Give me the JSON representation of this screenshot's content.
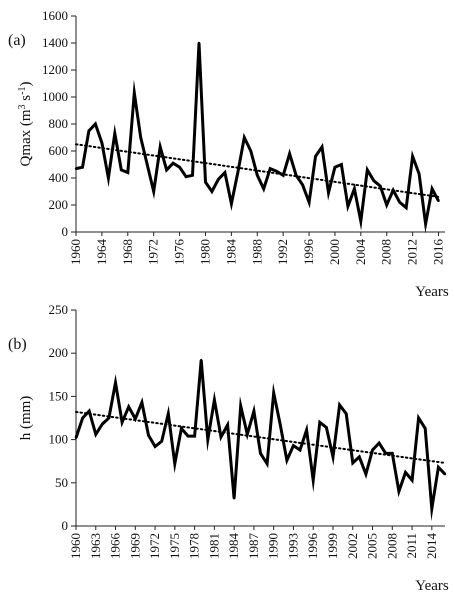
{
  "colors": {
    "series": "#000000",
    "trend": "#000000",
    "axis": "#222222"
  },
  "chart_data": [
    {
      "type": "line",
      "panel_label": "(a)",
      "ylabel_main": "Qmax (m",
      "ylabel_sup1": "3",
      "ylabel_mid": " s",
      "ylabel_sup2": "-1",
      "ylabel_end": ")",
      "xlabel": "Years",
      "ylim": [
        0,
        1600
      ],
      "yticks": [
        0,
        200,
        400,
        600,
        800,
        1000,
        1200,
        1400,
        1600
      ],
      "xlim": [
        1960,
        2017
      ],
      "xticks": [
        1960,
        1964,
        1968,
        1972,
        1976,
        1980,
        1984,
        1988,
        1992,
        1996,
        2000,
        2004,
        2008,
        2012,
        2016
      ],
      "grid": false,
      "x": [
        1960,
        1961,
        1962,
        1963,
        1964,
        1965,
        1966,
        1967,
        1968,
        1969,
        1970,
        1971,
        1972,
        1973,
        1974,
        1975,
        1976,
        1977,
        1978,
        1979,
        1980,
        1981,
        1982,
        1983,
        1984,
        1985,
        1986,
        1987,
        1988,
        1989,
        1990,
        1991,
        1992,
        1993,
        1994,
        1995,
        1996,
        1997,
        1998,
        1999,
        2000,
        2001,
        2002,
        2003,
        2004,
        2005,
        2006,
        2007,
        2008,
        2009,
        2010,
        2011,
        2012,
        2013,
        2014,
        2015,
        2016
      ],
      "values": [
        470,
        480,
        750,
        800,
        660,
        400,
        730,
        460,
        440,
        1030,
        700,
        500,
        300,
        630,
        460,
        510,
        480,
        410,
        420,
        1400,
        370,
        300,
        390,
        440,
        210,
        440,
        700,
        600,
        420,
        320,
        470,
        450,
        420,
        580,
        420,
        350,
        220,
        560,
        630,
        290,
        480,
        500,
        190,
        320,
        80,
        460,
        380,
        340,
        200,
        310,
        220,
        180,
        560,
        430,
        60,
        320,
        230
      ],
      "trend": {
        "start": [
          1960,
          650
        ],
        "end": [
          2016,
          260
        ]
      }
    },
    {
      "type": "line",
      "panel_label": "(b)",
      "ylabel": "h (mm)",
      "xlabel": "Years",
      "ylim": [
        0,
        250
      ],
      "yticks": [
        0,
        50,
        100,
        150,
        200,
        250
      ],
      "xlim": [
        1960,
        2016
      ],
      "xticks": [
        1960,
        1963,
        1966,
        1969,
        1972,
        1975,
        1978,
        1981,
        1984,
        1987,
        1990,
        1993,
        1996,
        1999,
        2002,
        2005,
        2008,
        2011,
        2014
      ],
      "grid": false,
      "x": [
        1960,
        1961,
        1962,
        1963,
        1964,
        1965,
        1966,
        1967,
        1968,
        1969,
        1970,
        1971,
        1972,
        1973,
        1974,
        1975,
        1976,
        1977,
        1978,
        1979,
        1980,
        1981,
        1982,
        1983,
        1984,
        1985,
        1986,
        1987,
        1988,
        1989,
        1990,
        1991,
        1992,
        1993,
        1994,
        1995,
        1996,
        1997,
        1998,
        1999,
        2000,
        2001,
        2002,
        2003,
        2004,
        2005,
        2006,
        2007,
        2008,
        2009,
        2010,
        2011,
        2012,
        2013,
        2014,
        2015,
        2016
      ],
      "values": [
        102,
        125,
        133,
        106,
        118,
        125,
        166,
        120,
        138,
        124,
        143,
        105,
        92,
        98,
        130,
        72,
        113,
        104,
        104,
        192,
        100,
        146,
        103,
        117,
        32,
        139,
        106,
        133,
        84,
        72,
        154,
        117,
        76,
        93,
        88,
        111,
        53,
        120,
        114,
        80,
        140,
        130,
        73,
        80,
        60,
        88,
        96,
        84,
        84,
        40,
        62,
        53,
        125,
        113,
        20,
        68,
        60
      ],
      "trend": {
        "start": [
          1960,
          132
        ],
        "end": [
          2016,
          73
        ]
      }
    }
  ]
}
